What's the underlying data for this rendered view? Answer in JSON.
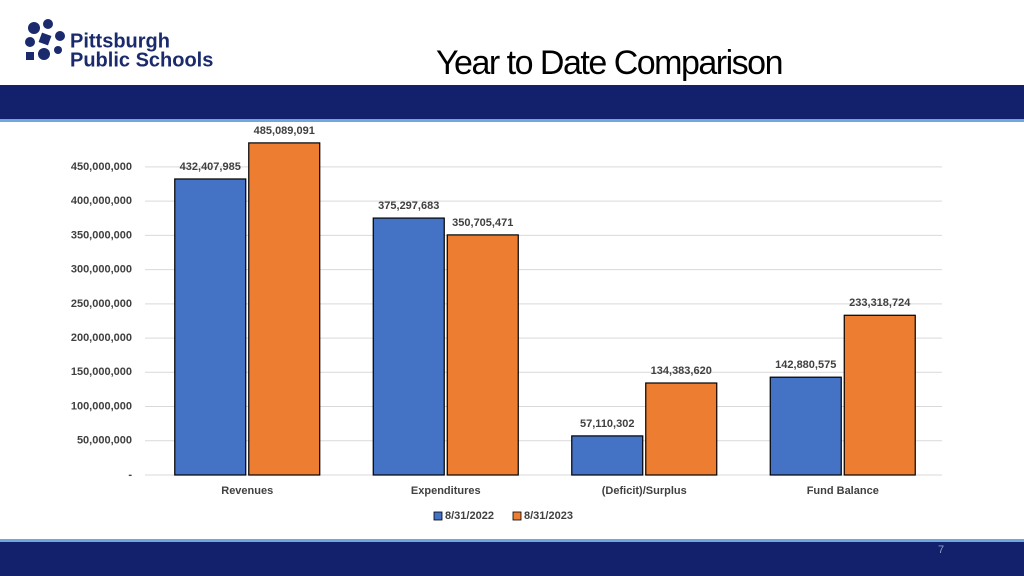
{
  "logo": {
    "line1": "Pittsburgh",
    "line2": "Public Schools"
  },
  "page_number": "7",
  "chart_data": {
    "type": "bar",
    "title": "Year to Date Comparison",
    "categories": [
      "Revenues",
      "Expenditures",
      "(Deficit)/Surplus",
      "Fund Balance"
    ],
    "series": [
      {
        "name": "8/31/2022",
        "color": "#4472c4",
        "values": [
          432407985,
          375297683,
          57110302,
          142880575
        ],
        "value_labels": [
          "432,407,985",
          "375,297,683",
          "57,110,302",
          "142,880,575"
        ]
      },
      {
        "name": "8/31/2023",
        "color": "#ed7d31",
        "values": [
          485089091,
          350705471,
          134383620,
          233318724
        ],
        "value_labels": [
          "485,089,091",
          "350,705,471",
          "134,383,620",
          "233,318,724"
        ]
      }
    ],
    "ylim": [
      0,
      500000000
    ],
    "yticks": [
      {
        "value": 0,
        "label": "-"
      },
      {
        "value": 50000000,
        "label": "50,000,000"
      },
      {
        "value": 100000000,
        "label": "100,000,000"
      },
      {
        "value": 150000000,
        "label": "150,000,000"
      },
      {
        "value": 200000000,
        "label": "200,000,000"
      },
      {
        "value": 250000000,
        "label": "250,000,000"
      },
      {
        "value": 300000000,
        "label": "300,000,000"
      },
      {
        "value": 350000000,
        "label": "350,000,000"
      },
      {
        "value": 400000000,
        "label": "400,000,000"
      },
      {
        "value": 450000000,
        "label": "450,000,000"
      }
    ],
    "grid": true,
    "legend": "bottom"
  }
}
